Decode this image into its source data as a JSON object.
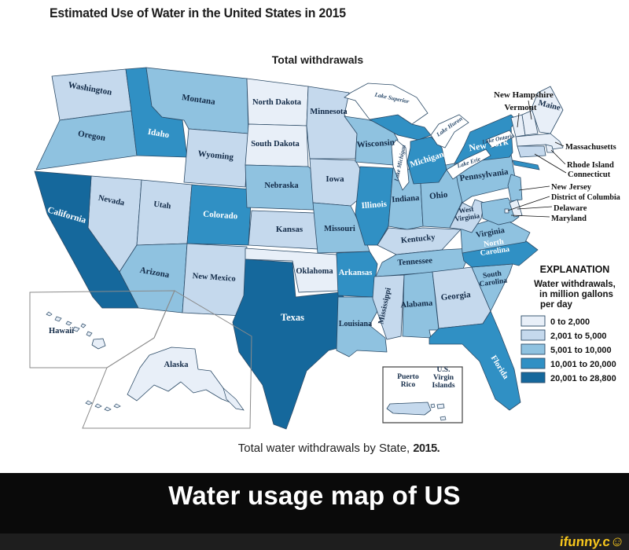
{
  "title": "Estimated Use of Water in the United States in 2015",
  "subtitle": "Total withdrawals",
  "caption": {
    "text": "Total water withdrawals by State,",
    "year": "2015."
  },
  "meme": {
    "caption": "Water usage map of US",
    "watermark": "ifunny.c",
    "watermark_smiley": "☺"
  },
  "legend": {
    "heading": "EXPLANATION",
    "subheading_lines": [
      "Water withdrawals,",
      "in million gallons",
      "per day"
    ],
    "classes": [
      {
        "label": "0 to 2,000",
        "color": "#e8eff8"
      },
      {
        "label": "2,001 to 5,000",
        "color": "#c5d9ed"
      },
      {
        "label": "5,001 to 10,000",
        "color": "#8fc2e0"
      },
      {
        "label": "10,001 to 20,000",
        "color": "#3090c4"
      },
      {
        "label": "20,001 to 28,800",
        "color": "#15689c"
      }
    ]
  },
  "lakes": [
    "Lake Superior",
    "Lake Michigan",
    "Lake Huron",
    "Lake Erie",
    "Lake Ontario"
  ],
  "chart_data": {
    "type": "choropleth",
    "title": "Total water withdrawals by State, 2015",
    "unit": "million gallons per day",
    "classes": [
      "0 to 2,000",
      "2,001 to 5,000",
      "5,001 to 10,000",
      "10,001 to 20,000",
      "20,001 to 28,800"
    ],
    "states": [
      {
        "name": "Washington",
        "class": 2
      },
      {
        "name": "Oregon",
        "class": 3
      },
      {
        "name": "California",
        "class": 5
      },
      {
        "name": "Nevada",
        "class": 2
      },
      {
        "name": "Idaho",
        "class": 4
      },
      {
        "name": "Montana",
        "class": 3
      },
      {
        "name": "Wyoming",
        "class": 2
      },
      {
        "name": "Utah",
        "class": 2
      },
      {
        "name": "Colorado",
        "class": 4
      },
      {
        "name": "Arizona",
        "class": 3
      },
      {
        "name": "New Mexico",
        "class": 2
      },
      {
        "name": "North Dakota",
        "class": 1
      },
      {
        "name": "South Dakota",
        "class": 1
      },
      {
        "name": "Nebraska",
        "class": 3
      },
      {
        "name": "Kansas",
        "class": 2
      },
      {
        "name": "Oklahoma",
        "class": 1
      },
      {
        "name": "Texas",
        "class": 5
      },
      {
        "name": "Minnesota",
        "class": 2
      },
      {
        "name": "Iowa",
        "class": 2
      },
      {
        "name": "Missouri",
        "class": 3
      },
      {
        "name": "Arkansas",
        "class": 4
      },
      {
        "name": "Louisiana",
        "class": 3
      },
      {
        "name": "Wisconsin",
        "class": 3
      },
      {
        "name": "Illinois",
        "class": 4
      },
      {
        "name": "Indiana",
        "class": 3
      },
      {
        "name": "Ohio",
        "class": 3
      },
      {
        "name": "Michigan",
        "class": 4
      },
      {
        "name": "Kentucky",
        "class": 2
      },
      {
        "name": "Tennessee",
        "class": 3
      },
      {
        "name": "Mississippi",
        "class": 2
      },
      {
        "name": "Alabama",
        "class": 3
      },
      {
        "name": "Georgia",
        "class": 2
      },
      {
        "name": "Florida",
        "class": 4
      },
      {
        "name": "South Carolina",
        "class": 3
      },
      {
        "name": "North Carolina",
        "class": 4
      },
      {
        "name": "Virginia",
        "class": 3
      },
      {
        "name": "West Virginia",
        "class": 2
      },
      {
        "name": "Pennsylvania",
        "class": 3
      },
      {
        "name": "New York",
        "class": 4
      },
      {
        "name": "New Jersey",
        "class": 3
      },
      {
        "name": "Connecticut",
        "class": 2
      },
      {
        "name": "Rhode Island",
        "class": 1
      },
      {
        "name": "Massachusetts",
        "class": 1
      },
      {
        "name": "Vermont",
        "class": 1
      },
      {
        "name": "New Hampshire",
        "class": 1
      },
      {
        "name": "Maine",
        "class": 1
      },
      {
        "name": "Maryland",
        "class": 3
      },
      {
        "name": "Delaware",
        "class": 1
      },
      {
        "name": "District of Columbia",
        "class": 1
      },
      {
        "name": "Alaska",
        "class": 1
      },
      {
        "name": "Hawaii",
        "class": 1
      },
      {
        "name": "Puerto Rico",
        "class": 2
      },
      {
        "name": "U.S. Virgin Islands",
        "class": 1
      }
    ]
  }
}
